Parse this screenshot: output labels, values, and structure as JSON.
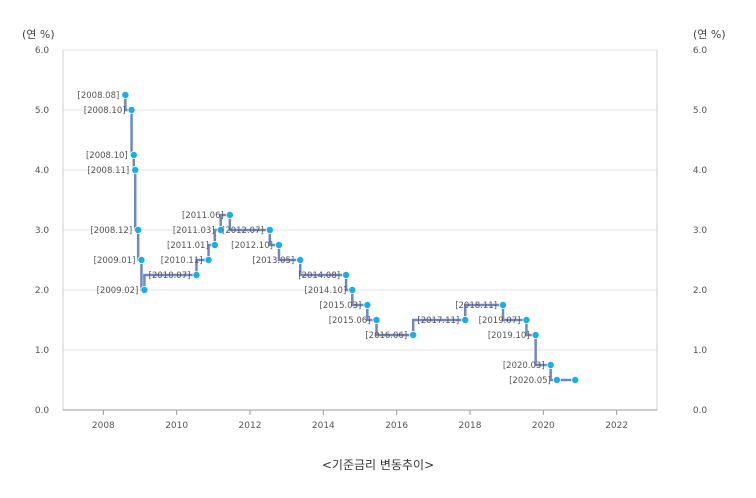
{
  "unit_left": "(연 %)",
  "unit_right": "(연 %)",
  "caption": "<기준금리 변동추이>",
  "colors": {
    "line": "#6f87c4",
    "point": "#13b0ea",
    "grid": "#e3e3e3",
    "label": "#555555"
  },
  "chart_data": {
    "type": "line",
    "step": true,
    "title": "<기준금리 변동추이>",
    "xlabel": "",
    "ylabel": "(연 %)",
    "xlim": [
      2006.9,
      2023.1
    ],
    "ylim": [
      0,
      6
    ],
    "x_ticks": [
      "2008",
      "2010",
      "2012",
      "2014",
      "2016",
      "2018",
      "2020",
      "2022"
    ],
    "y_ticks": [
      "0.0",
      "1.0",
      "2.0",
      "3.0",
      "4.0",
      "5.0",
      "6.0"
    ],
    "grid": true,
    "legend": "none",
    "series": [
      {
        "points": [
          {
            "x": 2008.6,
            "y": 5.25,
            "label": "[2008.08]"
          },
          {
            "x": 2008.77,
            "y": 5.0,
            "label": "[2008.10]"
          },
          {
            "x": 2008.83,
            "y": 4.25,
            "label": "[2008.10]"
          },
          {
            "x": 2008.87,
            "y": 4.0,
            "label": "[2008.11]"
          },
          {
            "x": 2008.95,
            "y": 3.0,
            "label": "[2008.12]"
          },
          {
            "x": 2009.04,
            "y": 2.5,
            "label": "[2009.01]"
          },
          {
            "x": 2009.12,
            "y": 2.0,
            "label": "[2009.02]"
          },
          {
            "x": 2010.54,
            "y": 2.25,
            "label": "[2010.07]"
          },
          {
            "x": 2010.87,
            "y": 2.5,
            "label": "[2010.11]"
          },
          {
            "x": 2011.04,
            "y": 2.75,
            "label": "[2011.01]"
          },
          {
            "x": 2011.2,
            "y": 3.0,
            "label": "[2011.03]"
          },
          {
            "x": 2011.45,
            "y": 3.25,
            "label": "[2011.06]"
          },
          {
            "x": 2012.54,
            "y": 3.0,
            "label": "[2012.07]"
          },
          {
            "x": 2012.79,
            "y": 2.75,
            "label": "[2012.10]"
          },
          {
            "x": 2013.37,
            "y": 2.5,
            "label": "[2013.05]"
          },
          {
            "x": 2014.62,
            "y": 2.25,
            "label": "[2014.08]"
          },
          {
            "x": 2014.79,
            "y": 2.0,
            "label": "[2014.10]"
          },
          {
            "x": 2015.2,
            "y": 1.75,
            "label": "[2015.03]"
          },
          {
            "x": 2015.45,
            "y": 1.5,
            "label": "[2015.06]"
          },
          {
            "x": 2016.45,
            "y": 1.25,
            "label": "[2016.06]"
          },
          {
            "x": 2017.87,
            "y": 1.5,
            "label": "[2017.11]"
          },
          {
            "x": 2018.9,
            "y": 1.75,
            "label": "[2018.11]"
          },
          {
            "x": 2019.54,
            "y": 1.5,
            "label": "[2019.07]"
          },
          {
            "x": 2019.79,
            "y": 1.25,
            "label": "[2019.10]"
          },
          {
            "x": 2020.2,
            "y": 0.75,
            "label": "[2020.03]"
          },
          {
            "x": 2020.37,
            "y": 0.5,
            "label": "[2020.05]"
          },
          {
            "x": 2020.87,
            "y": 0.5,
            "label": ""
          }
        ]
      }
    ]
  }
}
